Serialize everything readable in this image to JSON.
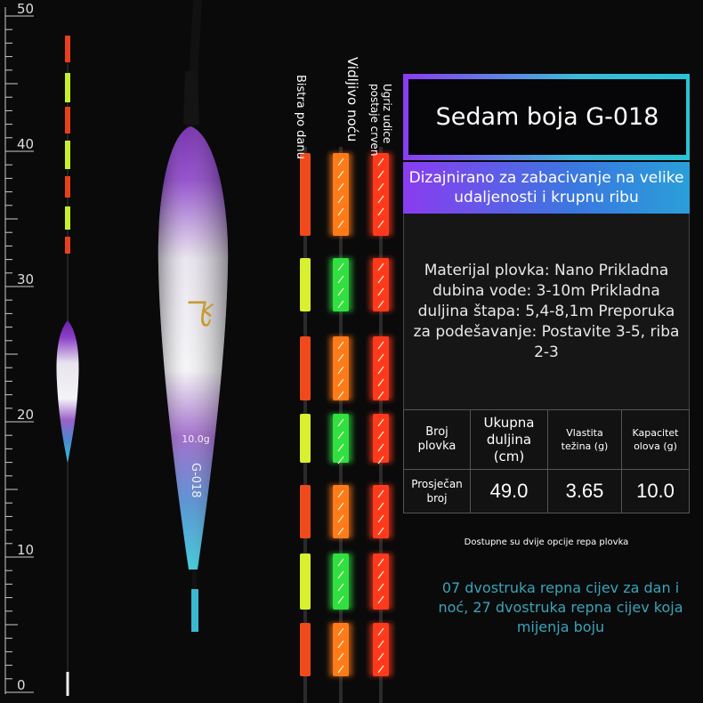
{
  "ruler": {
    "labels": [
      50,
      40,
      30,
      20,
      10,
      0
    ]
  },
  "float_print": {
    "weight": "10.0g",
    "model": "G-018"
  },
  "columns": [
    "Bistra po danu",
    "Vidljivo noću",
    "Ugriz udice postaje crven"
  ],
  "header": {
    "title": "Sedam boja G-018",
    "subtitle": "Dizajnirano za zabacivanje na velike udaljenosti i krupnu ribu"
  },
  "description": "Materijal plovka: Nano Prikladna dubina vode: 3-10m Prikladna duljina štapa: 5,4-8,1m Preporuka za podešavanje: Postavite 3-5, riba 2-3",
  "table": {
    "headers": [
      "Broj plovka",
      "Ukupna duljina (cm)",
      "Vlastita težina (g)",
      "Kapacitet olova (g)"
    ],
    "rows": [
      [
        "Prosječan broj",
        "49.0",
        "3.65",
        "10.0"
      ]
    ]
  },
  "note": "Dostupne su dvije opcije repa plovka",
  "footer": "07 dvostruka repna cijev za dan i noć, 27 dvostruka repna cijev koja mijenja boju"
}
